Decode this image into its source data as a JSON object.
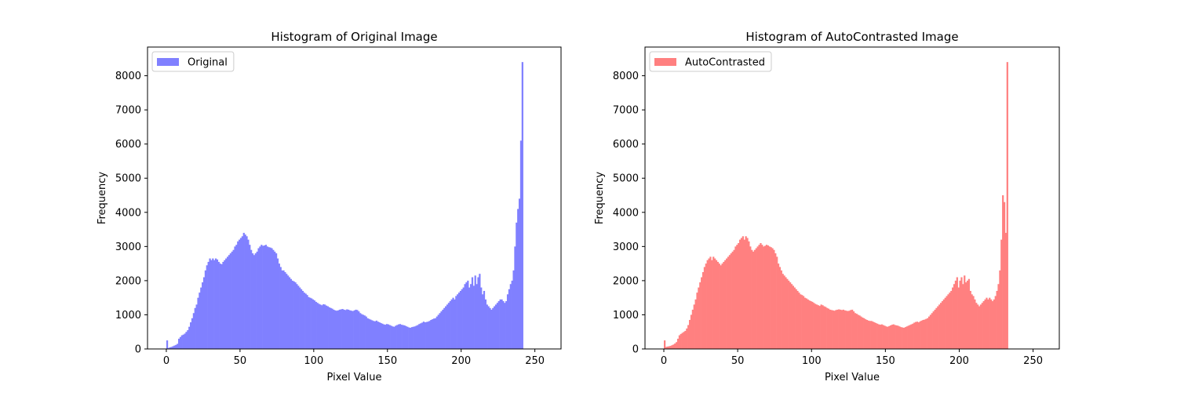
{
  "chart_data": [
    {
      "type": "bar",
      "title": "Histogram of Original Image",
      "xlabel": "Pixel Value",
      "ylabel": "Frequency",
      "xlim": [
        -12.75,
        267.75
      ],
      "ylim": [
        0,
        8840
      ],
      "xticks": [
        0,
        50,
        100,
        150,
        200,
        250
      ],
      "yticks": [
        0,
        1000,
        2000,
        3000,
        4000,
        5000,
        6000,
        7000,
        8000
      ],
      "legend": "top-left",
      "series": [
        {
          "name": "Original",
          "color": "#8080ff",
          "bin_start": 0,
          "bin_width": 1,
          "values": [
            250,
            30,
            50,
            60,
            80,
            100,
            120,
            150,
            300,
            350,
            400,
            420,
            450,
            500,
            550,
            650,
            780,
            900,
            1050,
            1200,
            1300,
            1500,
            1650,
            1800,
            1950,
            2100,
            2300,
            2450,
            2550,
            2650,
            2600,
            2650,
            2600,
            2650,
            2620,
            2550,
            2500,
            2480,
            2550,
            2600,
            2650,
            2700,
            2750,
            2800,
            2850,
            2900,
            3000,
            3050,
            3150,
            3200,
            3250,
            3300,
            3400,
            3350,
            3300,
            3200,
            3050,
            2900,
            2800,
            2750,
            2800,
            2850,
            2950,
            3000,
            3050,
            3020,
            3030,
            3050,
            3000,
            2980,
            2970,
            2950,
            2900,
            2850,
            2800,
            2650,
            2500,
            2400,
            2300,
            2300,
            2250,
            2200,
            2150,
            2100,
            2050,
            2000,
            1980,
            1950,
            1900,
            1850,
            1800,
            1750,
            1700,
            1650,
            1620,
            1580,
            1520,
            1500,
            1480,
            1450,
            1420,
            1380,
            1350,
            1320,
            1300,
            1280,
            1310,
            1300,
            1270,
            1250,
            1220,
            1200,
            1180,
            1150,
            1130,
            1120,
            1130,
            1150,
            1160,
            1170,
            1150,
            1140,
            1160,
            1150,
            1130,
            1120,
            1110,
            1130,
            1150,
            1140,
            1100,
            1050,
            1020,
            1000,
            980,
            950,
            900,
            880,
            860,
            840,
            820,
            810,
            830,
            800,
            780,
            760,
            740,
            720,
            710,
            730,
            720,
            700,
            680,
            660,
            650,
            680,
            700,
            720,
            730,
            710,
            700,
            690,
            670,
            650,
            630,
            620,
            640,
            650,
            660,
            680,
            700,
            730,
            750,
            770,
            800,
            780,
            790,
            800,
            820,
            850,
            870,
            890,
            900,
            950,
            1000,
            1050,
            1100,
            1150,
            1200,
            1250,
            1300,
            1350,
            1400,
            1450,
            1500,
            1450,
            1550,
            1600,
            1650,
            1700,
            1750,
            1800,
            1900,
            1950,
            2000,
            1800,
            1900,
            2100,
            1850,
            2150,
            1900,
            2100,
            2200,
            1800,
            1600,
            1700,
            1450,
            1300,
            1250,
            1200,
            1150,
            1200,
            1250,
            1300,
            1350,
            1400,
            1450,
            1450,
            1400,
            1350,
            1400,
            1600,
            1750,
            1900,
            2000,
            2300,
            3000,
            3700,
            4100,
            4400,
            6100,
            8400
          ]
        }
      ]
    },
    {
      "type": "bar",
      "title": "Histogram of AutoContrasted Image",
      "xlabel": "Pixel Value",
      "ylabel": "Frequency",
      "xlim": [
        -12.75,
        267.75
      ],
      "ylim": [
        0,
        8840
      ],
      "xticks": [
        0,
        50,
        100,
        150,
        200,
        250
      ],
      "yticks": [
        0,
        1000,
        2000,
        3000,
        4000,
        5000,
        6000,
        7000,
        8000
      ],
      "legend": "top-left",
      "series": [
        {
          "name": "AutoContrasted",
          "color": "#ff8080",
          "bin_start": 0,
          "bin_width": 1,
          "values": [
            250,
            60,
            70,
            80,
            90,
            110,
            130,
            160,
            200,
            300,
            400,
            440,
            470,
            500,
            530,
            600,
            700,
            850,
            1000,
            1150,
            1300,
            1450,
            1650,
            1800,
            1950,
            2100,
            2250,
            2400,
            2500,
            2600,
            2650,
            2700,
            2600,
            2700,
            2650,
            2600,
            2550,
            2500,
            2450,
            2500,
            2550,
            2600,
            2650,
            2700,
            2750,
            2800,
            2850,
            2900,
            3000,
            3050,
            3100,
            3200,
            3250,
            3300,
            3200,
            3300,
            3250,
            3150,
            3000,
            2900,
            2850,
            2900,
            2950,
            3000,
            3050,
            3100,
            3050,
            3000,
            3020,
            3050,
            3030,
            3000,
            2980,
            2950,
            2900,
            2800,
            2700,
            2500,
            2400,
            2300,
            2200,
            2150,
            2100,
            2050,
            2000,
            1950,
            1900,
            1850,
            1800,
            1750,
            1700,
            1650,
            1600,
            1580,
            1550,
            1500,
            1480,
            1450,
            1420,
            1400,
            1380,
            1350,
            1320,
            1300,
            1280,
            1260,
            1300,
            1280,
            1250,
            1230,
            1200,
            1180,
            1150,
            1140,
            1130,
            1120,
            1140,
            1150,
            1160,
            1150,
            1140,
            1150,
            1130,
            1120,
            1110,
            1120,
            1140,
            1150,
            1100,
            1050,
            1030,
            1000,
            980,
            950,
            920,
            900,
            870,
            850,
            830,
            820,
            820,
            800,
            780,
            760,
            740,
            720,
            710,
            720,
            700,
            680,
            660,
            650,
            670,
            690,
            710,
            720,
            700,
            690,
            680,
            660,
            640,
            630,
            620,
            640,
            660,
            680,
            700,
            720,
            740,
            770,
            790,
            800,
            780,
            810,
            830,
            850,
            860,
            880,
            900,
            950,
            1000,
            1050,
            1100,
            1150,
            1200,
            1250,
            1300,
            1350,
            1400,
            1450,
            1500,
            1550,
            1600,
            1650,
            1700,
            1800,
            1900,
            2000,
            2100,
            1800,
            2000,
            2100,
            1900,
            2150,
            1950,
            2000,
            2050,
            1700,
            1600,
            1550,
            1450,
            1350,
            1300,
            1250,
            1300,
            1350,
            1400,
            1450,
            1500,
            1450,
            1500,
            1450,
            1400,
            1450,
            1550,
            1700,
            1900,
            2300,
            3200,
            4500,
            4300,
            3400,
            8400
          ]
        }
      ]
    }
  ]
}
